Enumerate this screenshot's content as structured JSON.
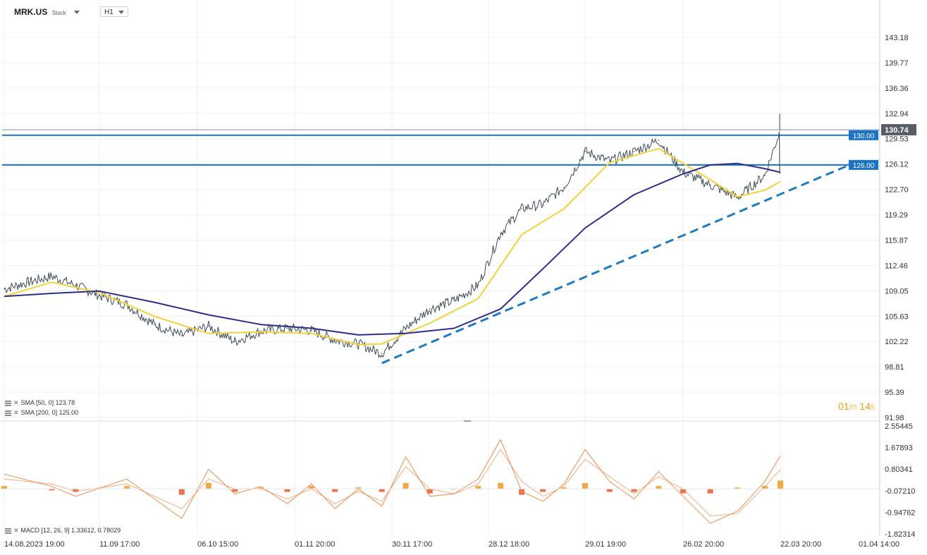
{
  "header": {
    "symbol": "MRK.US",
    "symbol_type": "Stock",
    "timeframe": "H1"
  },
  "timer": {
    "minutes": "01",
    "m_unit": "m",
    "seconds": "14",
    "s_unit": "s"
  },
  "legend": {
    "sma50": "SMA [50, 0] 123.78",
    "sma200": "SMA [200, 0] 125.00",
    "macd": "MACD [12, 26, 9] 1.33612, 0.78029"
  },
  "colors": {
    "price": "#3d4c57",
    "sma50": "#f2d23a",
    "sma200": "#2c2f88",
    "level_line": "#1a73c4",
    "trendline": "#1f7bc0",
    "current_price_box": "#595e66",
    "macd_hist_pos": "#f5a742",
    "macd_hist_neg": "#e8734f",
    "macd_line": "#f08a4b",
    "timer": "#f39c12"
  },
  "chart_data": [
    {
      "type": "line",
      "title": "MRK.US H1",
      "y_ticks": [
        "143.18",
        "139.77",
        "136.36",
        "132.94",
        "129.53",
        "126.12",
        "122.70",
        "119.29",
        "115.87",
        "112.46",
        "109.05",
        "105.63",
        "102.22",
        "98.81",
        "95.39",
        "91.98"
      ],
      "x_ticks": [
        "14.08.2023 19:00",
        "11.09 17:00",
        "06.10 15:00",
        "01.11 20:00",
        "30.11 17:00",
        "28.12 18:00",
        "29.01 19:00",
        "26.02 20:00",
        "22.03 20:00",
        "01.04 14:00"
      ],
      "ylim": [
        91.98,
        143.18
      ],
      "grid": true,
      "current_price": "130.74",
      "horizontal_levels": [
        {
          "label": "130.00",
          "value": 130.0
        },
        {
          "label": "126.00",
          "value": 126.0
        }
      ],
      "trendline": {
        "from": {
          "x": "27.11",
          "y": 99.3
        },
        "to": {
          "x": "29.03",
          "y": 126.0
        }
      },
      "series": [
        {
          "name": "MRK.US",
          "x": [
            "14.08",
            "21.08",
            "28.08",
            "04.09",
            "11.09",
            "18.09",
            "25.09",
            "02.10",
            "09.10",
            "16.10",
            "23.10",
            "30.10",
            "06.11",
            "13.11",
            "20.11",
            "27.11",
            "04.12",
            "11.12",
            "18.12",
            "25.12",
            "01.01",
            "08.01",
            "15.01",
            "22.01",
            "29.01",
            "05.02",
            "12.02",
            "19.02",
            "26.02",
            "04.03",
            "11.03",
            "18.03",
            "22.03"
          ],
          "values": [
            109.3,
            110.2,
            111.0,
            109.8,
            108.4,
            107.2,
            104.5,
            103.0,
            104.3,
            102.2,
            103.6,
            104.0,
            103.7,
            102.4,
            101.9,
            100.6,
            104.0,
            106.6,
            107.7,
            109.8,
            116.8,
            120.1,
            120.7,
            123.0,
            127.8,
            126.5,
            127.8,
            129.3,
            125.0,
            123.3,
            121.6,
            124.6,
            130.74
          ]
        },
        {
          "name": "SMA [50, 0]",
          "x": [
            "14.08",
            "28.08",
            "11.09",
            "25.09",
            "09.10",
            "23.10",
            "06.11",
            "20.11",
            "27.11",
            "11.12",
            "25.12",
            "08.01",
            "22.01",
            "05.02",
            "19.02",
            "04.03",
            "11.03",
            "18.03",
            "22.03"
          ],
          "values": [
            108.3,
            110.2,
            108.8,
            105.6,
            103.3,
            103.5,
            103.3,
            101.8,
            101.9,
            104.7,
            108.0,
            116.6,
            120.1,
            126.3,
            128.2,
            124.0,
            121.7,
            122.6,
            123.78
          ]
        },
        {
          "name": "SMA [200, 0]",
          "x": [
            "14.08",
            "28.08",
            "11.09",
            "25.09",
            "09.10",
            "23.10",
            "06.11",
            "20.11",
            "04.12",
            "18.12",
            "01.01",
            "15.01",
            "29.01",
            "12.02",
            "26.02",
            "04.03",
            "11.03",
            "18.03",
            "22.03"
          ],
          "values": [
            108.3,
            108.7,
            109.0,
            107.5,
            105.8,
            104.5,
            104.0,
            103.1,
            103.3,
            104.0,
            106.6,
            112.0,
            117.5,
            122.0,
            124.8,
            126.0,
            126.2,
            125.5,
            125.0
          ]
        }
      ]
    },
    {
      "type": "bar",
      "title": "MACD [12, 26, 9]",
      "y_ticks": [
        "2.55445",
        "1.67893",
        "0.80341",
        "-0.07210",
        "-0.94762",
        "-1.82314"
      ],
      "ylim": [
        -1.82314,
        2.55445
      ],
      "series": [
        {
          "name": "MACD",
          "x": [
            "14.08",
            "28.08",
            "04.09",
            "18.09",
            "02.10",
            "09.10",
            "16.10",
            "23.10",
            "30.10",
            "06.11",
            "13.11",
            "20.11",
            "27.11",
            "04.12",
            "11.12",
            "18.12",
            "25.12",
            "01.01",
            "08.01",
            "15.01",
            "22.01",
            "29.01",
            "05.02",
            "12.02",
            "19.02",
            "26.02",
            "04.03",
            "11.03",
            "18.03",
            "22.03"
          ],
          "values": [
            0.6,
            0.1,
            -0.3,
            0.4,
            -1.2,
            0.8,
            -0.2,
            0.1,
            -0.6,
            0.2,
            -0.8,
            0.0,
            -0.7,
            1.3,
            -0.3,
            -0.2,
            0.4,
            2.0,
            -0.1,
            -0.5,
            0.2,
            1.6,
            0.3,
            -0.4,
            0.7,
            -0.3,
            -1.4,
            -0.9,
            0.3,
            1.34
          ]
        },
        {
          "name": "Signal",
          "x": [
            "14.08",
            "28.08",
            "04.09",
            "18.09",
            "02.10",
            "09.10",
            "16.10",
            "23.10",
            "30.10",
            "06.11",
            "13.11",
            "20.11",
            "27.11",
            "04.12",
            "11.12",
            "18.12",
            "25.12",
            "01.01",
            "08.01",
            "15.01",
            "22.01",
            "29.01",
            "05.02",
            "12.02",
            "19.02",
            "26.02",
            "04.03",
            "11.03",
            "18.03",
            "22.03"
          ],
          "values": [
            0.4,
            0.2,
            -0.1,
            0.2,
            -0.8,
            0.4,
            0.0,
            0.0,
            -0.4,
            0.0,
            -0.6,
            -0.1,
            -0.5,
            0.9,
            0.0,
            -0.2,
            0.2,
            1.6,
            0.3,
            -0.3,
            0.1,
            1.2,
            0.5,
            -0.2,
            0.5,
            0.0,
            -1.1,
            -1.0,
            0.1,
            0.78
          ]
        }
      ]
    }
  ]
}
